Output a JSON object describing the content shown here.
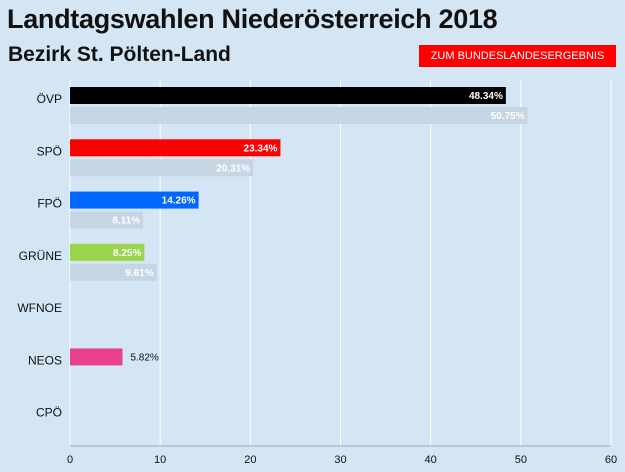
{
  "header": {
    "title": "Landtagswahlen Niederösterreich 2018",
    "subtitle": "Bezirk St. Pölten-Land",
    "button_label": "ZUM BUNDESLANDESERGEBNIS"
  },
  "colors": {
    "background": "#d4e5f4",
    "button": "#ff0000",
    "previous_bar": "#c5d5e2"
  },
  "chart_data": {
    "type": "bar",
    "orientation": "horizontal",
    "title": "Landtagswahlen Niederösterreich 2018",
    "subtitle": "Bezirk St. Pölten-Land",
    "categories": [
      "ÖVP",
      "SPÖ",
      "FPÖ",
      "GRÜNE",
      "WFNOE",
      "NEOS",
      "CPÖ"
    ],
    "series": [
      {
        "values": [
          48.34,
          23.34,
          14.26,
          8.25,
          null,
          5.82,
          null
        ],
        "labels": [
          "48.34%",
          "23.34%",
          "14.26%",
          "8.25%",
          "",
          "5.82%",
          ""
        ],
        "colors": [
          "#000000",
          "#ff0000",
          "#0066ff",
          "#99d44c",
          "#999999",
          "#e8438a",
          "#ff8800"
        ]
      },
      {
        "values": [
          50.75,
          20.31,
          8.11,
          9.61,
          null,
          null,
          null
        ],
        "labels": [
          "50.75%",
          "20.31%",
          "8.11%",
          "9.61%",
          "",
          "",
          ""
        ],
        "color": "#c5d5e2"
      }
    ],
    "xlim": [
      0,
      60
    ],
    "xticks": [
      "0",
      "10",
      "20",
      "30",
      "40",
      "50",
      "60"
    ],
    "grid": true
  }
}
